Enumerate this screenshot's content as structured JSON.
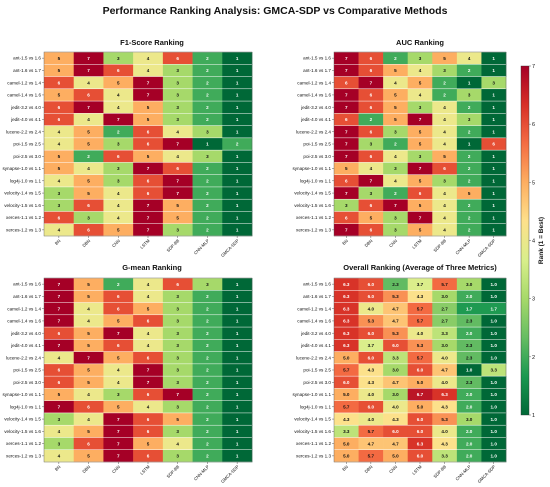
{
  "title": "Performance Ranking Analysis: GMCA-SDP vs Comparative Methods",
  "colors": {
    "scale": [
      "#006837",
      "#1a9850",
      "#66bd63",
      "#a6d96a",
      "#d9ef8b",
      "#fee08b",
      "#fdae61",
      "#f46d43",
      "#d73027",
      "#a50026"
    ]
  },
  "chart_data": [
    {
      "type": "heatmap",
      "title": "F1-Score Ranking",
      "rows": [
        "ant-1.5 vs 1.6",
        "ant-1.6 vs 1.7",
        "camel-1.2 vs 1.4",
        "camel-1.4 vs 1.6",
        "jedit-3.2 vs 4.0",
        "jedit-4.0 vs 4.1",
        "lucene-2.2 vs 2.4",
        "poi-1.5 vs 2.5",
        "poi-2.5 vs 3.0",
        "synapse-1.0 vs 1.1",
        "log4j-1.0 vs 1.1",
        "velocity-1.4 vs 1.5",
        "velocity-1.5 vs 1.6",
        "xerces-1.1 vs 1.2",
        "xerces-1.2 vs 1.3"
      ],
      "columns": [
        "BN",
        "DBN",
        "CNN",
        "LSTM",
        "SDP-BB",
        "CNN-MLP",
        "GMCA-SDP"
      ],
      "values": [
        [
          5,
          7,
          3,
          4,
          6,
          2,
          1
        ],
        [
          5,
          7,
          6,
          4,
          3,
          2,
          1
        ],
        [
          6,
          4,
          5,
          7,
          3,
          2,
          1
        ],
        [
          5,
          6,
          4,
          7,
          3,
          2,
          1
        ],
        [
          6,
          7,
          4,
          5,
          3,
          2,
          1
        ],
        [
          6,
          4,
          7,
          5,
          3,
          2,
          1
        ],
        [
          4,
          5,
          2,
          6,
          4,
          3,
          1
        ],
        [
          4,
          5,
          3,
          6,
          7,
          1,
          2
        ],
        [
          5,
          2,
          6,
          5,
          4,
          3,
          1
        ],
        [
          5,
          4,
          3,
          7,
          6,
          2,
          1
        ],
        [
          4,
          5,
          3,
          6,
          7,
          2,
          1
        ],
        [
          3,
          5,
          4,
          6,
          7,
          2,
          1
        ],
        [
          3,
          6,
          4,
          7,
          5,
          2,
          1
        ],
        [
          6,
          3,
          4,
          7,
          5,
          2,
          1
        ],
        [
          4,
          6,
          5,
          7,
          3,
          2,
          1
        ]
      ],
      "decimals": 0
    },
    {
      "type": "heatmap",
      "title": "AUC Ranking",
      "rows": [
        "ant-1.5 vs 1.6",
        "ant-1.6 vs 1.7",
        "camel-1.2 vs 1.4",
        "camel-1.4 vs 1.6",
        "jedit-3.2 vs 4.0",
        "jedit-4.0 vs 4.1",
        "lucene-2.2 vs 2.4",
        "poi-1.5 vs 2.5",
        "poi-2.5 vs 3.0",
        "synapse-1.0 vs 1.1",
        "log4j-1.0 vs 1.1",
        "velocity-1.4 vs 1.5",
        "velocity-1.5 vs 1.6",
        "xerces-1.1 vs 1.2",
        "xerces-1.2 vs 1.3"
      ],
      "columns": [
        "BN",
        "DBN",
        "CNN",
        "LSTM",
        "SDP-BB",
        "CNN-MLP",
        "GMCA-SDP"
      ],
      "values": [
        [
          7,
          6,
          2,
          3,
          5,
          4,
          1
        ],
        [
          7,
          6,
          5,
          4,
          3,
          2,
          1
        ],
        [
          6,
          7,
          4,
          5,
          2,
          1,
          3
        ],
        [
          7,
          6,
          5,
          4,
          2,
          3,
          1
        ],
        [
          7,
          6,
          5,
          3,
          4,
          2,
          1
        ],
        [
          6,
          2,
          5,
          7,
          4,
          3,
          1
        ],
        [
          7,
          6,
          3,
          5,
          4,
          2,
          1
        ],
        [
          7,
          3,
          2,
          5,
          4,
          1,
          6
        ],
        [
          7,
          6,
          4,
          3,
          5,
          2,
          1
        ],
        [
          5,
          4,
          3,
          7,
          6,
          2,
          1
        ],
        [
          6,
          7,
          4,
          5,
          3,
          2,
          1
        ],
        [
          7,
          3,
          2,
          6,
          4,
          5,
          1
        ],
        [
          3,
          6,
          7,
          5,
          4,
          2,
          1
        ],
        [
          6,
          5,
          3,
          7,
          4,
          2,
          1
        ],
        [
          7,
          6,
          3,
          5,
          4,
          2,
          1
        ]
      ],
      "decimals": 0
    },
    {
      "type": "heatmap",
      "title": "G-mean Ranking",
      "rows": [
        "ant-1.5 vs 1.6",
        "ant-1.6 vs 1.7",
        "camel-1.2 vs 1.4",
        "camel-1.4 vs 1.6",
        "jedit-3.2 vs 4.0",
        "jedit-4.0 vs 4.1",
        "lucene-2.2 vs 2.4",
        "poi-1.5 vs 2.5",
        "poi-2.5 vs 3.0",
        "synapse-1.0 vs 1.1",
        "log4j-1.0 vs 1.1",
        "velocity-1.4 vs 1.5",
        "velocity-1.5 vs 1.6",
        "xerces-1.1 vs 1.2",
        "xerces-1.2 vs 1.3"
      ],
      "columns": [
        "BN",
        "DBN",
        "CNN",
        "LSTM",
        "SDP-BB",
        "CNN-MLP",
        "GMCA-SDP"
      ],
      "values": [
        [
          7,
          5,
          2,
          4,
          6,
          3,
          1
        ],
        [
          7,
          5,
          6,
          4,
          3,
          2,
          1
        ],
        [
          7,
          4,
          6,
          5,
          3,
          2,
          1
        ],
        [
          7,
          4,
          5,
          6,
          3,
          2,
          1
        ],
        [
          6,
          5,
          7,
          4,
          3,
          2,
          1
        ],
        [
          7,
          5,
          6,
          4,
          3,
          2,
          1
        ],
        [
          4,
          7,
          5,
          6,
          3,
          2,
          1
        ],
        [
          6,
          5,
          4,
          7,
          3,
          2,
          1
        ],
        [
          6,
          5,
          4,
          7,
          3,
          2,
          1
        ],
        [
          5,
          4,
          3,
          6,
          7,
          2,
          1
        ],
        [
          7,
          6,
          5,
          4,
          3,
          2,
          1
        ],
        [
          3,
          4,
          7,
          6,
          5,
          2,
          1
        ],
        [
          4,
          5,
          7,
          6,
          3,
          2,
          1
        ],
        [
          3,
          6,
          7,
          5,
          4,
          2,
          1
        ],
        [
          4,
          5,
          7,
          6,
          3,
          2,
          1
        ]
      ],
      "decimals": 0
    },
    {
      "type": "heatmap",
      "title": "Overall Ranking (Average of Three Metrics)",
      "rows": [
        "ant-1.5 vs 1.6",
        "ant-1.6 vs 1.7",
        "camel-1.2 vs 1.4",
        "camel-1.4 vs 1.6",
        "jedit-3.2 vs 4.0",
        "jedit-4.0 vs 4.1",
        "lucene-2.2 vs 2.4",
        "poi-1.5 vs 2.5",
        "poi-2.5 vs 3.0",
        "synapse-1.0 vs 1.1",
        "log4j-1.0 vs 1.1",
        "velocity-1.4 vs 1.5",
        "velocity-1.5 vs 1.6",
        "xerces-1.1 vs 1.2",
        "xerces-1.2 vs 1.3"
      ],
      "columns": [
        "BN",
        "DBN",
        "CNN",
        "LSTM",
        "SDP-BB",
        "CNN-MLP",
        "GMCA-SDP"
      ],
      "values": [
        [
          6.3,
          6.0,
          2.3,
          3.7,
          5.7,
          3.0,
          1.0
        ],
        [
          6.3,
          6.0,
          5.3,
          4.3,
          3.0,
          2.0,
          1.0
        ],
        [
          6.3,
          4.0,
          4.7,
          5.7,
          2.7,
          1.7,
          1.7
        ],
        [
          6.3,
          5.3,
          4.7,
          5.7,
          2.7,
          2.3,
          1.0
        ],
        [
          6.3,
          6.0,
          5.3,
          4.0,
          3.3,
          2.0,
          1.0
        ],
        [
          6.3,
          3.7,
          6.0,
          5.3,
          3.0,
          2.3,
          1.0
        ],
        [
          5.0,
          6.0,
          3.3,
          5.7,
          4.0,
          2.3,
          1.0
        ],
        [
          5.7,
          4.3,
          3.0,
          6.0,
          4.7,
          1.0,
          3.3
        ],
        [
          6.0,
          4.3,
          4.7,
          5.0,
          4.0,
          2.3,
          1.0
        ],
        [
          5.0,
          4.0,
          3.0,
          6.7,
          6.3,
          2.0,
          1.0
        ],
        [
          5.7,
          6.0,
          4.0,
          5.0,
          4.3,
          2.0,
          1.0
        ],
        [
          4.3,
          4.0,
          4.3,
          6.0,
          5.3,
          3.0,
          1.0
        ],
        [
          3.3,
          5.7,
          6.0,
          6.0,
          4.0,
          2.0,
          1.0
        ],
        [
          5.0,
          4.7,
          4.7,
          6.3,
          4.3,
          2.0,
          1.0
        ],
        [
          5.0,
          5.7,
          5.0,
          6.0,
          3.3,
          2.0,
          1.0
        ]
      ],
      "decimals": 1
    }
  ],
  "colorbar": {
    "label": "Rank (1 = Best)",
    "min": 1,
    "max": 7,
    "ticks": [
      1,
      2,
      3,
      4,
      5,
      6,
      7
    ]
  }
}
